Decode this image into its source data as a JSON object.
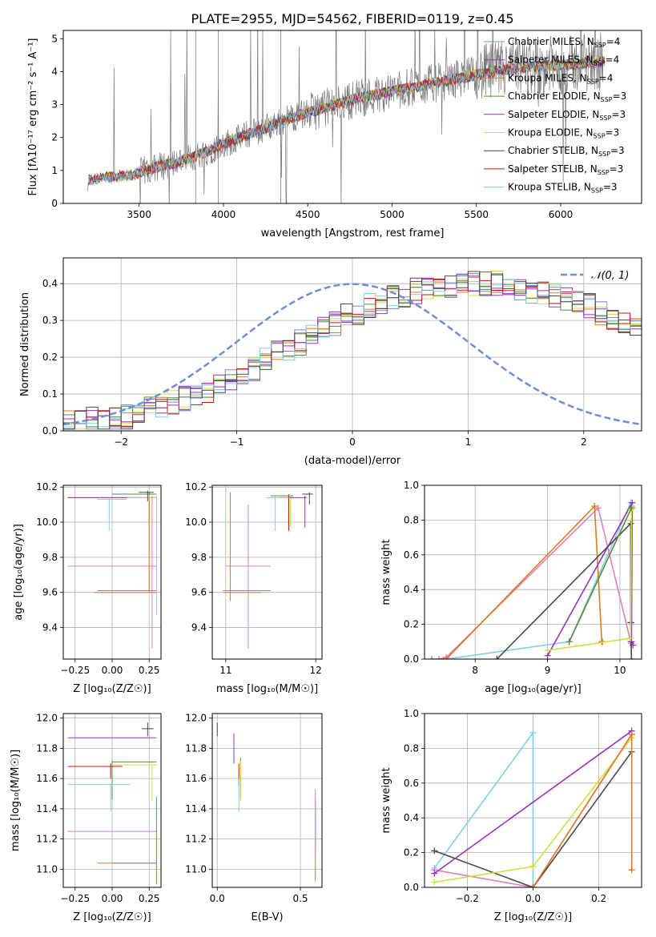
{
  "figure_title": "PLATE=2955, MJD=54562, FIBERID=0119, z=0.45",
  "colors": {
    "grid": "#b0b0b0",
    "ChM": "#6b8fd6",
    "SaM": "#9b30c0",
    "KrM": "#e07a20",
    "ChE": "#5a8a3a",
    "SaE": "#9b30c0",
    "KrE": "#cce040",
    "ChS": "#4a4a4a",
    "SaS": "#c01818",
    "KrS": "#80d0e0",
    "gauss": "#6a8fd8",
    "pink": "#e080b8",
    "spectrum": "#7a7a7a"
  },
  "chart_data": [
    {
      "type": "line",
      "id": "spectrum",
      "title": "PLATE=2955, MJD=54562, FIBERID=0119, z=0.45",
      "xlabel": "wavelength [Angstrom, rest frame]",
      "ylabel": "Flux [fλ10⁻¹⁷ erg cm⁻² s⁻¹ A⁻¹]",
      "xlim": [
        3050,
        6480
      ],
      "ylim": [
        0,
        5.25
      ],
      "xticks": [
        3500,
        4000,
        4500,
        5000,
        5500,
        6000
      ],
      "yticks": [
        0,
        1,
        2,
        3,
        4,
        5
      ],
      "data_trend": [
        [
          3190,
          0
        ],
        [
          3200,
          0.7
        ],
        [
          3300,
          0.8
        ],
        [
          3450,
          0.85
        ],
        [
          3600,
          1.1
        ],
        [
          3800,
          1.35
        ],
        [
          4000,
          1.8
        ],
        [
          4200,
          2.2
        ],
        [
          4400,
          2.6
        ],
        [
          4600,
          2.9
        ],
        [
          4800,
          3.2
        ],
        [
          5000,
          3.4
        ],
        [
          5200,
          3.6
        ],
        [
          5400,
          3.8
        ],
        [
          5600,
          4.0
        ],
        [
          5800,
          4.15
        ],
        [
          6000,
          4.2
        ],
        [
          6250,
          4.3
        ]
      ],
      "legend_position": "upper right",
      "legend": [
        {
          "key": "ChM",
          "main": "Chabrier MILES, N",
          "sub": "SSP",
          "tail": "=4"
        },
        {
          "key": "SaM",
          "main": "Salpeter MILES, N",
          "sub": "SSP",
          "tail": "=4"
        },
        {
          "key": "KrM",
          "main": "Kroupa MILES, N",
          "sub": "SSP",
          "tail": "=4"
        },
        {
          "key": "ChE",
          "main": "Chabrier ELODIE, N",
          "sub": "SSP",
          "tail": "=3"
        },
        {
          "key": "SaE",
          "main": "Salpeter ELODIE, N",
          "sub": "SSP",
          "tail": "=3"
        },
        {
          "key": "KrE",
          "main": "Kroupa ELODIE, N",
          "sub": "SSP",
          "tail": "=3"
        },
        {
          "key": "ChS",
          "main": "Chabrier STELIB, N",
          "sub": "SSP",
          "tail": "=3"
        },
        {
          "key": "SaS",
          "main": "Salpeter STELIB, N",
          "sub": "SSP",
          "tail": "=3"
        },
        {
          "key": "KrS",
          "main": "Kroupa STELIB, N",
          "sub": "SSP",
          "tail": "=3"
        }
      ]
    },
    {
      "type": "histogram",
      "id": "residuals",
      "xlabel": "(data-model)/error",
      "ylabel": "Normed distribution",
      "xlim": [
        -2.5,
        2.5
      ],
      "ylim": [
        0,
        0.47
      ],
      "xticks": [
        -2,
        -1,
        0,
        1,
        2
      ],
      "yticks": [
        0.0,
        0.1,
        0.2,
        0.3,
        0.4
      ],
      "bin_width": 0.1,
      "legend": "𝒩(0, 1)",
      "envelope": [
        0.02,
        0.02,
        0.03,
        0.03,
        0.04,
        0.04,
        0.05,
        0.06,
        0.07,
        0.08,
        0.09,
        0.1,
        0.11,
        0.12,
        0.14,
        0.15,
        0.17,
        0.19,
        0.21,
        0.22,
        0.24,
        0.26,
        0.28,
        0.29,
        0.31,
        0.32,
        0.34,
        0.35,
        0.36,
        0.37,
        0.38,
        0.38,
        0.39,
        0.39,
        0.4,
        0.4,
        0.4,
        0.4,
        0.39,
        0.39,
        0.38,
        0.38,
        0.37,
        0.36,
        0.35,
        0.34,
        0.32,
        0.31,
        0.29,
        0.28,
        0.26,
        0.24,
        0.22,
        0.21,
        0.19,
        0.17,
        0.15,
        0.14,
        0.12,
        0.11,
        0.1,
        0.09,
        0.08,
        0.07,
        0.06,
        0.06,
        0.05,
        0.05,
        0.05,
        0.04
      ]
    },
    {
      "type": "errorbar",
      "id": "age_vs_Z",
      "xlabel": "Z [log₁₀(Z/Z☉)]",
      "ylabel": "age  [log₁₀(age/yr)]",
      "xlim": [
        -0.33,
        0.33
      ],
      "ylim": [
        9.22,
        10.21
      ],
      "xticks": [
        -0.25,
        0.0,
        0.25
      ],
      "yticks": [
        9.4,
        9.6,
        9.8,
        10.0,
        10.2
      ],
      "points": [
        {
          "key": "ChM",
          "x": -0.3,
          "y": 10.14,
          "xl": -0.3,
          "xh": 0.28,
          "yl": 10.14,
          "yh": 10.14
        },
        {
          "key": "SaM",
          "x": 0.0,
          "y": 10.14,
          "xl": -0.3,
          "xh": 0.3,
          "yl": 10.14,
          "yh": 10.14
        },
        {
          "key": "ChE",
          "x": 0.25,
          "y": 10.16,
          "xl": 0.0,
          "xh": 0.3,
          "yl": 10.0,
          "yh": 10.17
        },
        {
          "key": "KrE",
          "x": 0.25,
          "y": 10.14,
          "xl": 0.1,
          "xh": 0.3,
          "yl": 9.98,
          "yh": 10.15
        },
        {
          "key": "ChS",
          "x": 0.24,
          "y": 10.17,
          "xl": 0.18,
          "xh": 0.28,
          "yl": 10.12,
          "yh": 10.18
        },
        {
          "key": "KrS",
          "x": -0.02,
          "y": 10.13,
          "xl": -0.1,
          "xh": 0.1,
          "yl": 9.95,
          "yh": 10.14
        },
        {
          "key": "pink",
          "x": 0.27,
          "y": 9.75,
          "xl": -0.3,
          "xh": 0.3,
          "yl": 9.28,
          "yh": 10.15
        },
        {
          "key": "ChM",
          "x": 0.0,
          "y": 9.61,
          "xl": -0.1,
          "xh": 0.3,
          "yl": 9.61,
          "yh": 9.61
        },
        {
          "key": "KrM",
          "x": 0.25,
          "y": 9.6,
          "xl": -0.12,
          "xh": 0.3,
          "yl": 9.6,
          "yh": 10.14
        },
        {
          "key": "KrS",
          "x": 0.3,
          "y": 9.61,
          "xl": 0.3,
          "xh": 0.3,
          "yl": 9.47,
          "yh": 10.15
        }
      ]
    },
    {
      "type": "errorbar",
      "id": "age_vs_mass",
      "xlabel": "mass [log₁₀(M/M☉)]",
      "xlim": [
        10.85,
        12.07
      ],
      "ylim": [
        9.22,
        10.21
      ],
      "xticks": [
        11,
        12
      ],
      "yticks": [
        9.4,
        9.6,
        9.8,
        10.0,
        10.2
      ],
      "points": [
        {
          "key": "ChM",
          "x": 11.05,
          "y": 9.61,
          "xl": 10.97,
          "xh": 11.5,
          "yl": 9.6,
          "yh": 10.17
        },
        {
          "key": "KrM",
          "x": 11.05,
          "y": 9.6,
          "xl": 10.97,
          "xh": 11.4,
          "yl": 9.55,
          "yh": 10.1
        },
        {
          "key": "pink",
          "x": 11.25,
          "y": 9.75,
          "xl": 11.0,
          "xh": 11.5,
          "yl": 9.28,
          "yh": 10.1
        },
        {
          "key": "KrS",
          "x": 11.55,
          "y": 10.14,
          "xl": 11.45,
          "xh": 11.7,
          "yl": 9.95,
          "yh": 10.15
        },
        {
          "key": "ChE",
          "x": 11.7,
          "y": 10.15,
          "xl": 11.5,
          "xh": 11.75,
          "yl": 9.98,
          "yh": 10.16
        },
        {
          "key": "SaS",
          "x": 11.7,
          "y": 10.14,
          "xl": 11.6,
          "xh": 11.75,
          "yl": 9.95,
          "yh": 10.15
        },
        {
          "key": "KrE",
          "x": 11.72,
          "y": 10.14,
          "xl": 11.6,
          "xh": 11.8,
          "yl": 9.97,
          "yh": 10.15
        },
        {
          "key": "SaM",
          "x": 11.88,
          "y": 10.14,
          "xl": 11.7,
          "xh": 11.9,
          "yl": 9.97,
          "yh": 10.15
        },
        {
          "key": "ChS",
          "x": 11.93,
          "y": 10.16,
          "xl": 11.85,
          "xh": 11.97,
          "yl": 10.1,
          "yh": 10.17
        }
      ]
    },
    {
      "type": "line",
      "id": "weight_vs_age",
      "xlabel": "age  [log₁₀(age/yr)]",
      "ylabel": "mass weight",
      "xlim": [
        7.3,
        10.3
      ],
      "ylim": [
        0,
        1.0
      ],
      "xticks": [
        8,
        9,
        10
      ],
      "yticks": [
        0.0,
        0.2,
        0.4,
        0.6,
        0.8,
        1.0
      ],
      "series": [
        {
          "key": "KrS",
          "points": [
            [
              7.5,
              0
            ],
            [
              7.6,
              0
            ],
            [
              9.3,
              0.1
            ],
            [
              10.15,
              0.9
            ],
            [
              10.16,
              0.88
            ]
          ]
        },
        {
          "key": "pink",
          "points": [
            [
              7.5,
              0
            ],
            [
              7.6,
              0.01
            ],
            [
              9.7,
              0.87
            ],
            [
              10.15,
              0.1
            ],
            [
              10.16,
              0.09
            ]
          ]
        },
        {
          "key": "KrM",
          "points": [
            [
              7.4,
              0
            ],
            [
              7.6,
              0
            ],
            [
              9.65,
              0.88
            ],
            [
              9.75,
              0.1
            ],
            [
              9.76,
              0.1
            ]
          ]
        },
        {
          "key": "SaM",
          "points": [
            [
              9.0,
              0.02
            ],
            [
              10.17,
              0.9
            ],
            [
              10.16,
              0.1
            ],
            [
              10.18,
              0.08
            ]
          ]
        },
        {
          "key": "ChS",
          "points": [
            [
              8.3,
              0
            ],
            [
              10.15,
              0.78
            ],
            [
              10.15,
              0.21
            ],
            [
              10.16,
              0
            ]
          ]
        },
        {
          "key": "KrE",
          "points": [
            [
              9.0,
              0.05
            ],
            [
              10.15,
              0.12
            ],
            [
              10.16,
              0.86
            ],
            [
              10.17,
              0.87
            ]
          ]
        },
        {
          "key": "ChE",
          "points": [
            [
              9.3,
              0.1
            ],
            [
              10.16,
              0.87
            ]
          ]
        }
      ]
    },
    {
      "type": "errorbar",
      "id": "mass_vs_Z",
      "xlabel": "Z [log₁₀(Z/Z☉)]",
      "ylabel": "mass [log₁₀(M/M☉)]",
      "xlim": [
        -0.33,
        0.33
      ],
      "ylim": [
        10.88,
        12.03
      ],
      "xticks": [
        -0.25,
        0.0,
        0.25
      ],
      "yticks": [
        11.0,
        11.2,
        11.4,
        11.6,
        11.8,
        12.0
      ],
      "points": [
        {
          "key": "ChS",
          "x": 0.24,
          "y": 11.93,
          "xl": 0.2,
          "xh": 0.28,
          "yl": 11.88,
          "yh": 11.97
        },
        {
          "key": "SaM",
          "x": 0.27,
          "y": 11.87,
          "xl": -0.3,
          "xh": 0.3,
          "yl": 11.87,
          "yh": 11.87
        },
        {
          "key": "ChE",
          "x": 0.0,
          "y": 11.71,
          "xl": 0.0,
          "xh": 0.3,
          "yl": 11.46,
          "yh": 11.72
        },
        {
          "key": "KrE",
          "x": 0.27,
          "y": 11.69,
          "xl": 0.0,
          "xh": 0.3,
          "yl": 11.45,
          "yh": 11.7
        },
        {
          "key": "SaS",
          "x": -0.01,
          "y": 11.68,
          "xl": -0.3,
          "xh": 0.07,
          "yl": 11.6,
          "yh": 11.7
        },
        {
          "key": "KrS",
          "x": -0.01,
          "y": 11.56,
          "xl": -0.3,
          "xh": 0.12,
          "yl": 11.38,
          "yh": 11.57
        },
        {
          "key": "pink",
          "x": 0.3,
          "y": 11.25,
          "xl": -0.3,
          "xh": 0.3,
          "yl": 11.25,
          "yh": 11.45
        },
        {
          "key": "KrM",
          "x": 0.3,
          "y": 11.04,
          "xl": -0.1,
          "xh": 0.3,
          "yl": 10.9,
          "yh": 11.45
        },
        {
          "key": "ChM",
          "x": 0.3,
          "y": 11.04,
          "xl": 0.0,
          "xh": 0.3,
          "yl": 10.9,
          "yh": 11.48
        }
      ]
    },
    {
      "type": "errorbar",
      "id": "mass_vs_ebv",
      "xlabel": "E(B-V)",
      "xlim": [
        -0.03,
        0.63
      ],
      "ylim": [
        10.88,
        12.03
      ],
      "xticks": [
        0.0,
        0.5
      ],
      "yticks": [
        11.0,
        11.2,
        11.4,
        11.6,
        11.8,
        12.0
      ],
      "points": [
        {
          "key": "ChS",
          "x": 0.0,
          "y": 11.93,
          "yl": 11.88,
          "yh": 11.97
        },
        {
          "key": "SaM",
          "x": 0.1,
          "y": 11.8,
          "yl": 11.7,
          "yh": 11.9
        },
        {
          "key": "ChE",
          "x": 0.14,
          "y": 11.6,
          "yl": 11.46,
          "yh": 11.74
        },
        {
          "key": "SaS",
          "x": 0.13,
          "y": 11.63,
          "yl": 11.55,
          "yh": 11.7
        },
        {
          "key": "KrS",
          "x": 0.13,
          "y": 11.5,
          "yl": 11.38,
          "yh": 11.6
        },
        {
          "key": "KrE",
          "x": 0.14,
          "y": 11.6,
          "yl": 11.45,
          "yh": 11.72
        },
        {
          "key": "KrM",
          "x": 0.59,
          "y": 11.2,
          "yl": 10.92,
          "yh": 11.46
        },
        {
          "key": "pink",
          "x": 0.59,
          "y": 11.3,
          "yl": 11.1,
          "yh": 11.53
        }
      ]
    },
    {
      "type": "line",
      "id": "weight_vs_Z",
      "xlabel": "Z [log₁₀(Z/Z☉)]",
      "ylabel": "mass weight",
      "xlim": [
        -0.33,
        0.33
      ],
      "ylim": [
        0,
        1.0
      ],
      "xticks": [
        -0.2,
        0.0,
        0.2
      ],
      "yticks": [
        0.0,
        0.2,
        0.4,
        0.6,
        0.8,
        1.0
      ],
      "series": [
        {
          "key": "KrS",
          "points": [
            [
              -0.3,
              0.11
            ],
            [
              0.0,
              0.89
            ],
            [
              0.0,
              0.0
            ]
          ]
        },
        {
          "key": "pink",
          "points": [
            [
              -0.3,
              0.1
            ],
            [
              0.0,
              0.0
            ],
            [
              0.3,
              0.88
            ]
          ]
        },
        {
          "key": "ChS",
          "points": [
            [
              -0.3,
              0.21
            ],
            [
              0.0,
              0.0
            ],
            [
              0.3,
              0.78
            ]
          ]
        },
        {
          "key": "SaM",
          "points": [
            [
              -0.3,
              0.08
            ],
            [
              0.3,
              0.9
            ]
          ]
        },
        {
          "key": "KrE",
          "points": [
            [
              -0.3,
              0.03
            ],
            [
              0.0,
              0.12
            ],
            [
              0.3,
              0.86
            ]
          ]
        },
        {
          "key": "KrM",
          "points": [
            [
              0.0,
              0.0
            ],
            [
              0.3,
              0.88
            ],
            [
              0.3,
              0.1
            ]
          ]
        }
      ]
    }
  ]
}
